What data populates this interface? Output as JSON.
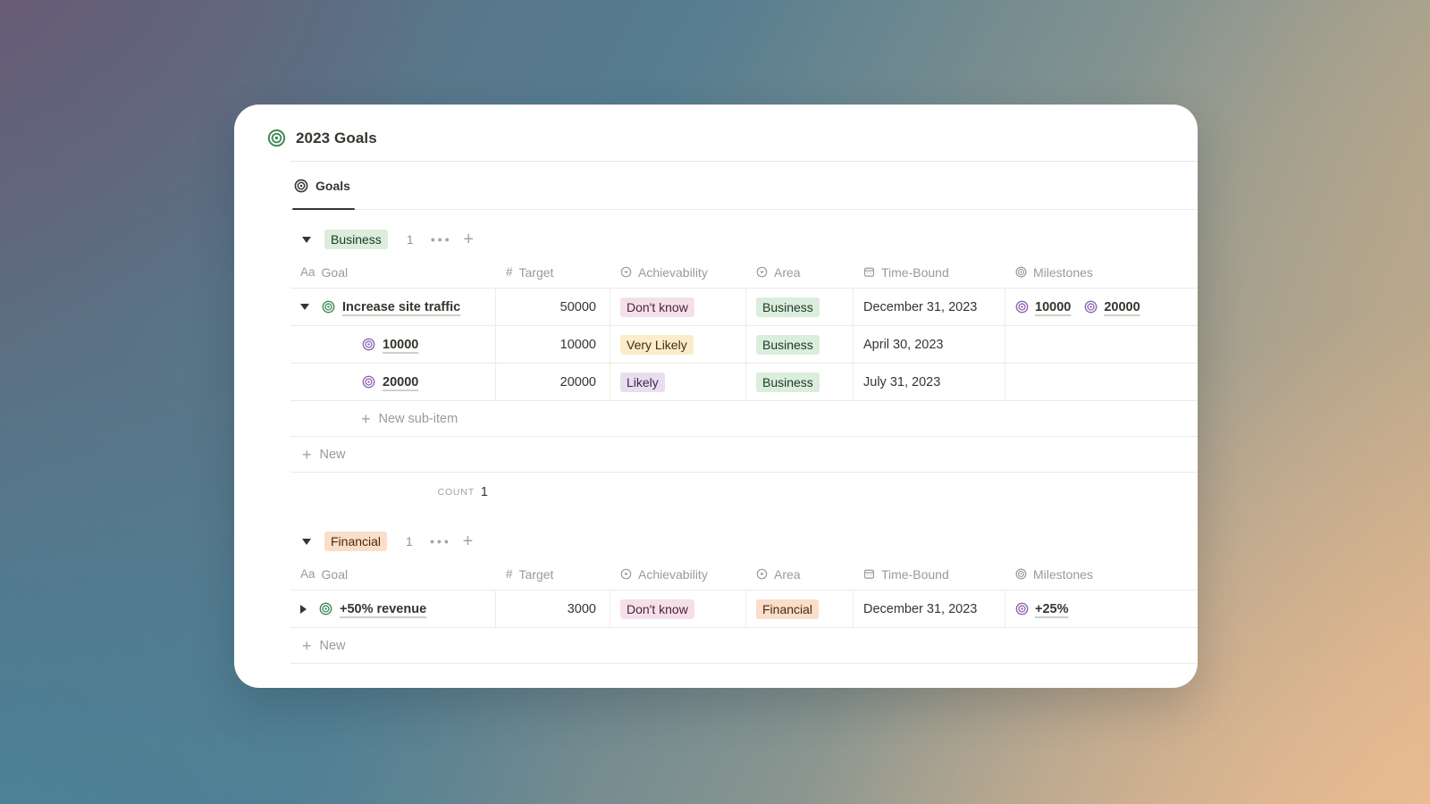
{
  "page": {
    "title": "2023 Goals"
  },
  "tabs": [
    {
      "label": "Goals",
      "active": true
    }
  ],
  "columns": [
    {
      "label": "Goal",
      "type": "text",
      "glyph": "Aa"
    },
    {
      "label": "Target",
      "type": "number",
      "glyph": "#"
    },
    {
      "label": "Achievability",
      "type": "select"
    },
    {
      "label": "Area",
      "type": "select"
    },
    {
      "label": "Time-Bound",
      "type": "date"
    },
    {
      "label": "Milestones",
      "type": "relation"
    }
  ],
  "groups": [
    {
      "name": "Business",
      "badge_bg": "#DBEDDB",
      "badge_color": "#1C3829",
      "count": "1",
      "rows": [
        {
          "level": 0,
          "toggle": "expanded",
          "title": "Increase site traffic",
          "target": "50000",
          "achievability": {
            "label": "Don't know",
            "bg": "#F5E0E9",
            "color": "#4C2337"
          },
          "area": {
            "label": "Business",
            "bg": "#DBEDDB",
            "color": "#1C3829"
          },
          "timebound": "December 31, 2023",
          "milestones": [
            "10000",
            "20000"
          ]
        },
        {
          "level": 1,
          "toggle": null,
          "title": "10000",
          "target": "10000",
          "achievability": {
            "label": "Very Likely",
            "bg": "#FDECC8",
            "color": "#402C1B"
          },
          "area": {
            "label": "Business",
            "bg": "#DBEDDB",
            "color": "#1C3829"
          },
          "timebound": "April 30, 2023",
          "milestones": []
        },
        {
          "level": 1,
          "toggle": null,
          "title": "20000",
          "target": "20000",
          "achievability": {
            "label": "Likely",
            "bg": "#E8DEEE",
            "color": "#412454"
          },
          "area": {
            "label": "Business",
            "bg": "#DBEDDB",
            "color": "#1C3829"
          },
          "timebound": "July 31, 2023",
          "milestones": []
        }
      ],
      "new_sub_item_label": "New sub-item",
      "new_label": "New",
      "count_label": "COUNT",
      "count_value": "1"
    },
    {
      "name": "Financial",
      "badge_bg": "#FADEC9",
      "badge_color": "#49290E",
      "count": "1",
      "rows": [
        {
          "level": 0,
          "toggle": "collapsed",
          "title": "+50% revenue",
          "target": "3000",
          "achievability": {
            "label": "Don't know",
            "bg": "#F5E0E9",
            "color": "#4C2337"
          },
          "area": {
            "label": "Financial",
            "bg": "#FADEC9",
            "color": "#49290E"
          },
          "timebound": "December 31, 2023",
          "milestones": [
            "+25%"
          ]
        }
      ],
      "new_label": "New"
    }
  ],
  "theme": {
    "card_bg": "#ffffff",
    "text": "#37352f",
    "muted": "#9b9a97",
    "divider": "#e9e8e6",
    "icon_green": "#3e8a55",
    "icon_purple": "#9065b0",
    "background_corners": {
      "top_left": "#6a5874",
      "bottom_left": "#46869c",
      "top_right": "#baaa8c",
      "bottom_right": "#eec094"
    }
  }
}
